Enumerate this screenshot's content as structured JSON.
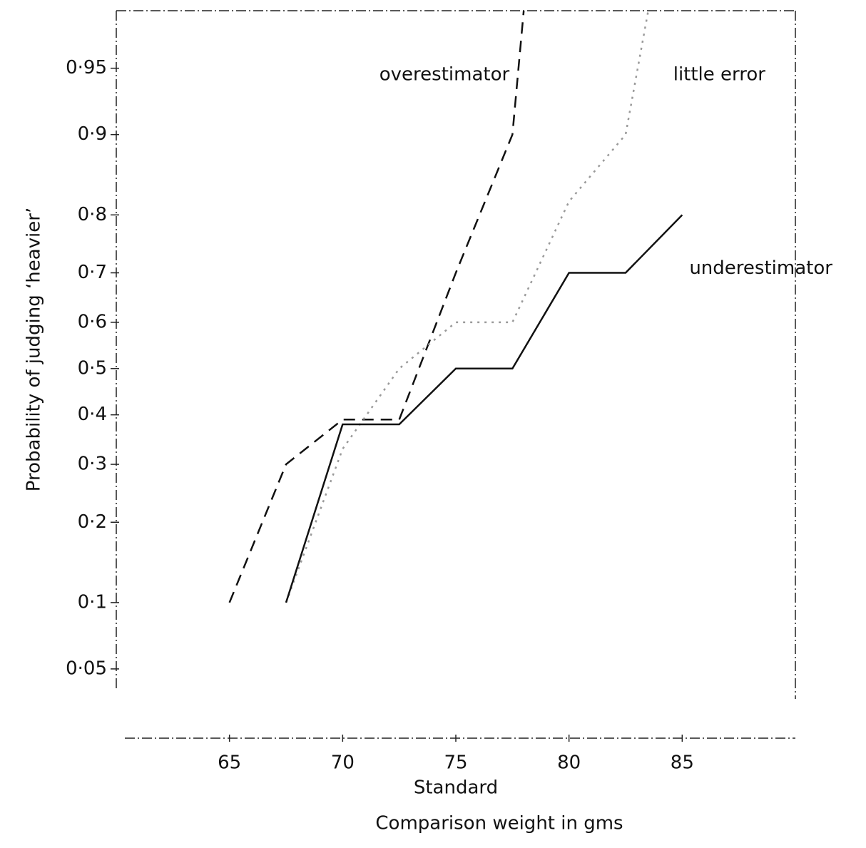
{
  "chart_data": {
    "type": "line",
    "xlabel": "Comparison weight in gms",
    "ylabel": "Probability of judging ‘heavier’",
    "yscale": "probit",
    "xlim": [
      60,
      90
    ],
    "xticks": [
      65,
      70,
      75,
      80,
      85
    ],
    "ylim": [
      0.04,
      0.975
    ],
    "yticks": [
      {
        "value": 0.05,
        "label": "0·05"
      },
      {
        "value": 0.1,
        "label": "0·1"
      },
      {
        "value": 0.2,
        "label": "0·2"
      },
      {
        "value": 0.3,
        "label": "0·3"
      },
      {
        "value": 0.4,
        "label": "0·4"
      },
      {
        "value": 0.5,
        "label": "0·5"
      },
      {
        "value": 0.6,
        "label": "0·6"
      },
      {
        "value": 0.7,
        "label": "0·7"
      },
      {
        "value": 0.8,
        "label": "0·8"
      },
      {
        "value": 0.9,
        "label": "0·9"
      },
      {
        "value": 0.95,
        "label": "0·95"
      }
    ],
    "annotations": [
      {
        "text": "Standard",
        "x": 75
      }
    ],
    "series": [
      {
        "name": "overestimator",
        "color": "#111111",
        "dash": "dashed",
        "x": [
          65,
          67.5,
          70,
          72.5,
          75,
          77.5,
          78
        ],
        "values": [
          0.1,
          0.3,
          0.39,
          0.39,
          0.7,
          0.9,
          0.975
        ]
      },
      {
        "name": "little error",
        "color": "#9a9a9a",
        "dash": "dotted",
        "x": [
          67.5,
          70,
          72.5,
          75,
          77.5,
          80,
          82.5,
          83.5
        ],
        "values": [
          0.1,
          0.33,
          0.5,
          0.6,
          0.6,
          0.82,
          0.9,
          0.975
        ]
      },
      {
        "name": "underestimator",
        "color": "#111111",
        "dash": "solid",
        "x": [
          67.5,
          70,
          72.5,
          75,
          77.5,
          80,
          82.5,
          85
        ],
        "values": [
          0.1,
          0.38,
          0.38,
          0.5,
          0.5,
          0.7,
          0.7,
          0.8
        ]
      }
    ]
  }
}
